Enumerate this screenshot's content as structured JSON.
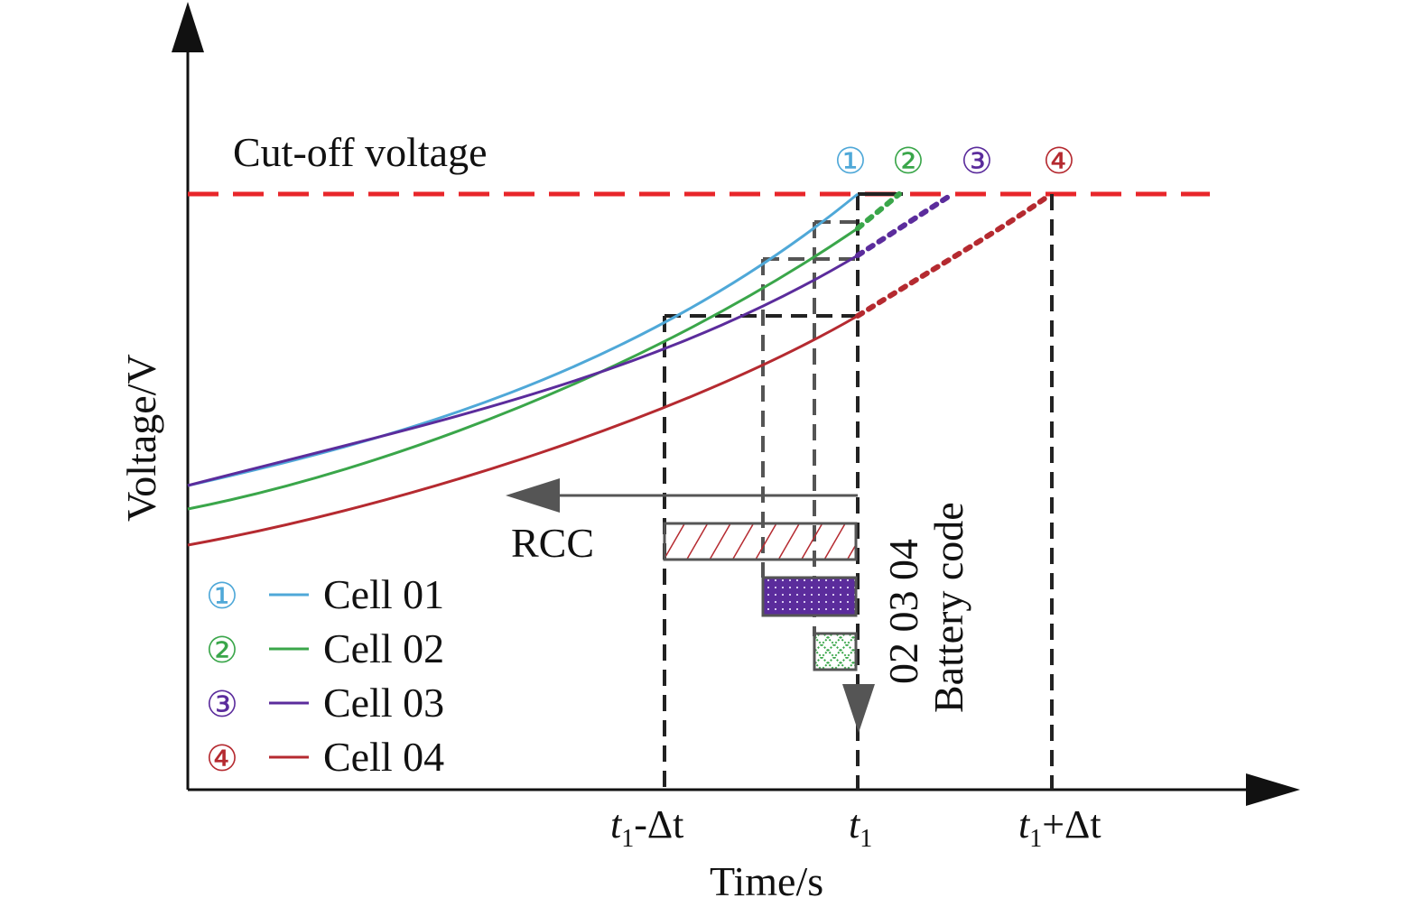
{
  "axes": {
    "ylabel": "Voltage/V",
    "xlabel": "Time/s",
    "ticks": [
      {
        "main": "t",
        "sub": "1",
        "rest": "-Δt"
      },
      {
        "main": "t",
        "sub": "1",
        "rest": ""
      },
      {
        "main": "t",
        "sub": "1",
        "rest": "+Δt"
      }
    ]
  },
  "cutoff": {
    "label": "Cut-off voltage",
    "color": "#e8262a"
  },
  "markers": [
    "①",
    "②",
    "③",
    "④"
  ],
  "rcc_label": "RCC",
  "battery_code": {
    "title": "Battery code",
    "codes": "02 03 04"
  },
  "legend": {
    "items": [
      {
        "marker": "①",
        "label": "Cell 01",
        "color": "#4fa8d8"
      },
      {
        "marker": "②",
        "label": "Cell 02",
        "color": "#3aa64a"
      },
      {
        "marker": "③",
        "label": "Cell 03",
        "color": "#5b2c9c"
      },
      {
        "marker": "④",
        "label": "Cell 04",
        "color": "#b52a30"
      }
    ]
  },
  "guide_colors": {
    "dark": "#222222",
    "gray": "#555555"
  }
}
